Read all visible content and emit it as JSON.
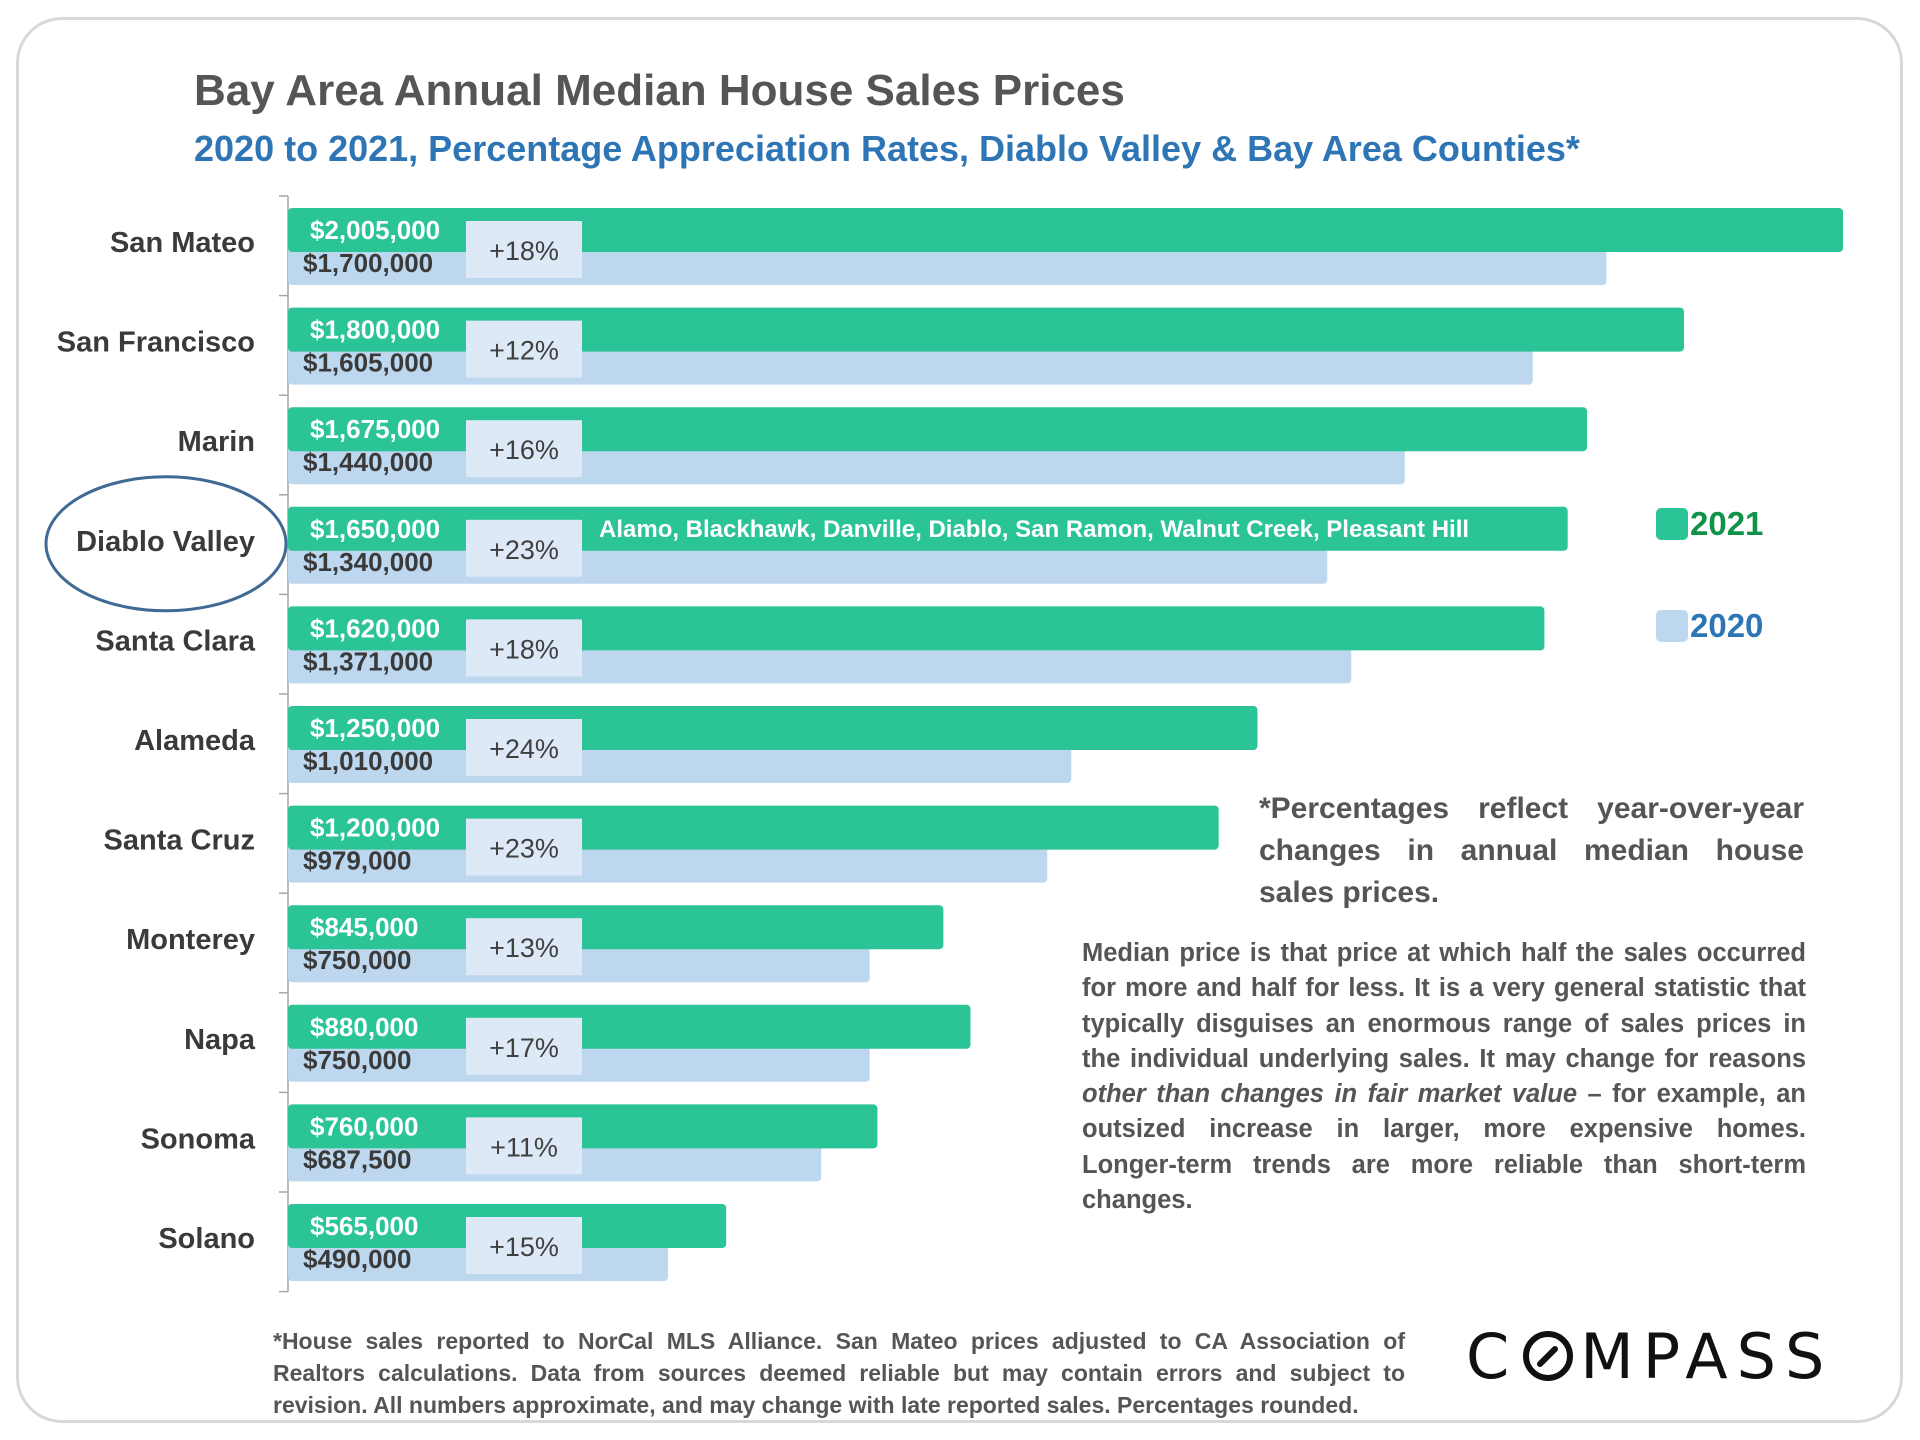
{
  "header": {
    "title": "Bay Area Annual Median House Sales Prices",
    "subtitle": "2020 to 2021, Percentage Appreciation Rates, Diablo Valley & Bay Area Counties*"
  },
  "colors": {
    "bar_2021": "#2bc496",
    "bar_2020": "#bdd7ee",
    "pct_box": "#dde9f6",
    "title": "#555555",
    "subtitle": "#2e75b6",
    "legend_2021_text": "#11924a",
    "legend_2020_text": "#2e75b6",
    "highlight_ellipse": "#3e6a94"
  },
  "chart_data": {
    "type": "bar",
    "orientation": "horizontal",
    "title": "Bay Area Annual Median House Sales Prices",
    "subtitle": "2020 to 2021, Percentage Appreciation Rates, Diablo Valley & Bay Area Counties*",
    "xlabel": "",
    "ylabel": "",
    "xlim": [
      0,
      2005000
    ],
    "grid": false,
    "legend_position": "right",
    "categories": [
      "San Mateo",
      "San Francisco",
      "Marin",
      "Diablo Valley",
      "Santa Clara",
      "Alameda",
      "Santa Cruz",
      "Monterey",
      "Napa",
      "Sonoma",
      "Solano"
    ],
    "series": [
      {
        "name": "2021",
        "values": [
          2005000,
          1800000,
          1675000,
          1650000,
          1620000,
          1250000,
          1200000,
          845000,
          880000,
          760000,
          565000
        ],
        "labels": [
          "$2,005,000",
          "$1,800,000",
          "$1,675,000",
          "$1,650,000",
          "$1,620,000",
          "$1,250,000",
          "$1,200,000",
          "$845,000",
          "$880,000",
          "$760,000",
          "$565,000"
        ]
      },
      {
        "name": "2020",
        "values": [
          1700000,
          1605000,
          1440000,
          1340000,
          1371000,
          1010000,
          979000,
          750000,
          750000,
          687500,
          490000
        ],
        "labels": [
          "$1,700,000",
          "$1,605,000",
          "$1,440,000",
          "$1,340,000",
          "$1,371,000",
          "$1,010,000",
          "$979,000",
          "$750,000",
          "$750,000",
          "$687,500",
          "$490,000"
        ]
      }
    ],
    "pct_change": [
      "+18%",
      "+12%",
      "+16%",
      "+23%",
      "+18%",
      "+24%",
      "+23%",
      "+13%",
      "+17%",
      "+11%",
      "+15%"
    ],
    "highlighted_category": "Diablo Valley",
    "annotations": [
      {
        "category": "Diablo Valley",
        "text": "Alamo, Blackhawk, Danville, Diablo, San Ramon, Walnut Creek, Pleasant Hill"
      }
    ]
  },
  "legend": {
    "items": [
      {
        "label": "2021"
      },
      {
        "label": "2020"
      }
    ]
  },
  "notes": {
    "percentages": "*Percentages reflect year-over-year changes in annual median house sales prices.",
    "median_part1": "Median price is that price at which half the sales occurred for more and half for less. It is a very general statistic that typically disguises an enormous range of sales prices in the individual underlying sales. It may change for reasons ",
    "median_italic": "other than changes in fair market value",
    "median_part2": " – for example, an outsized increase in larger, more expensive homes. Longer-term trends are more reliable than short-term changes."
  },
  "footer": {
    "disclaimer": "*House sales reported to NorCal MLS Alliance. San Mateo prices adjusted to CA Association of Realtors calculations. Data from sources deemed reliable but may contain errors and subject to revision.  All numbers approximate, and may change with late reported sales. Percentages rounded.",
    "logo_text_pre": "C",
    "logo_text_post": "MPASS",
    "logo_name": "COMPASS"
  }
}
